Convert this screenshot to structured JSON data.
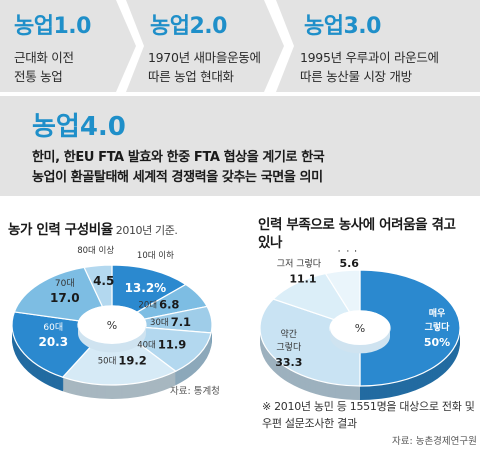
{
  "stages": [
    {
      "title": "농업1.0",
      "desc": [
        "근대화 이전",
        "전통 농업"
      ]
    },
    {
      "title": "농업2.0",
      "desc": [
        "1970년 새마을운동에",
        "따른 농업 현대화"
      ]
    },
    {
      "title": "농업3.0",
      "desc": [
        "1995년 우루과이 라운드에",
        "따른 농산물 시장 개방"
      ]
    }
  ],
  "highlight": {
    "title": "농업4.0",
    "desc": [
      "한미, 한EU FTA 발효와 한중 FTA 협상을 계기로 한국",
      "농업이 환골탈태해 세계적 경쟁력을 갖추는 국면을 의미"
    ]
  },
  "colors": {
    "accent": "#1f8fc9",
    "deep": "#2b89cf",
    "mid": "#7dbde3",
    "light": "#b3d8ef",
    "pale": "#d6eaf6",
    "band": "#e3e3e3"
  },
  "chart_data": [
    {
      "type": "pie",
      "title": "농가 인력 구성비율",
      "subtitle": "2010년 기준.",
      "center_label": "%",
      "categories": [
        "10대 이하",
        "20대",
        "30대",
        "40대",
        "50대",
        "60대",
        "70대",
        "80대 이상"
      ],
      "values": [
        13.2,
        6.8,
        7.1,
        11.9,
        19.2,
        20.3,
        17.0,
        4.5
      ],
      "value_labels": [
        "13.2%",
        "6.8",
        "7.1",
        "11.9",
        "19.2",
        "20.3",
        "17.0",
        "4.5"
      ],
      "source": "자료: 통계청"
    },
    {
      "type": "pie",
      "title": "인력 부족으로 농사에 어려움을 겪고",
      "title2": "있나",
      "center_label": "%",
      "categories": [
        "매우 그렇다",
        "약간 그렇다",
        "그저 그렇다",
        "아니다"
      ],
      "values": [
        50,
        33.3,
        11.1,
        5.6
      ],
      "value_labels": [
        "50%",
        "33.3",
        "11.1",
        "5.6"
      ],
      "note": [
        "※ 2010년 농민 등 1551명을 대상으로 전화 및",
        "우편 설문조사한 결과"
      ],
      "source": "자료: 농촌경제연구원"
    }
  ]
}
